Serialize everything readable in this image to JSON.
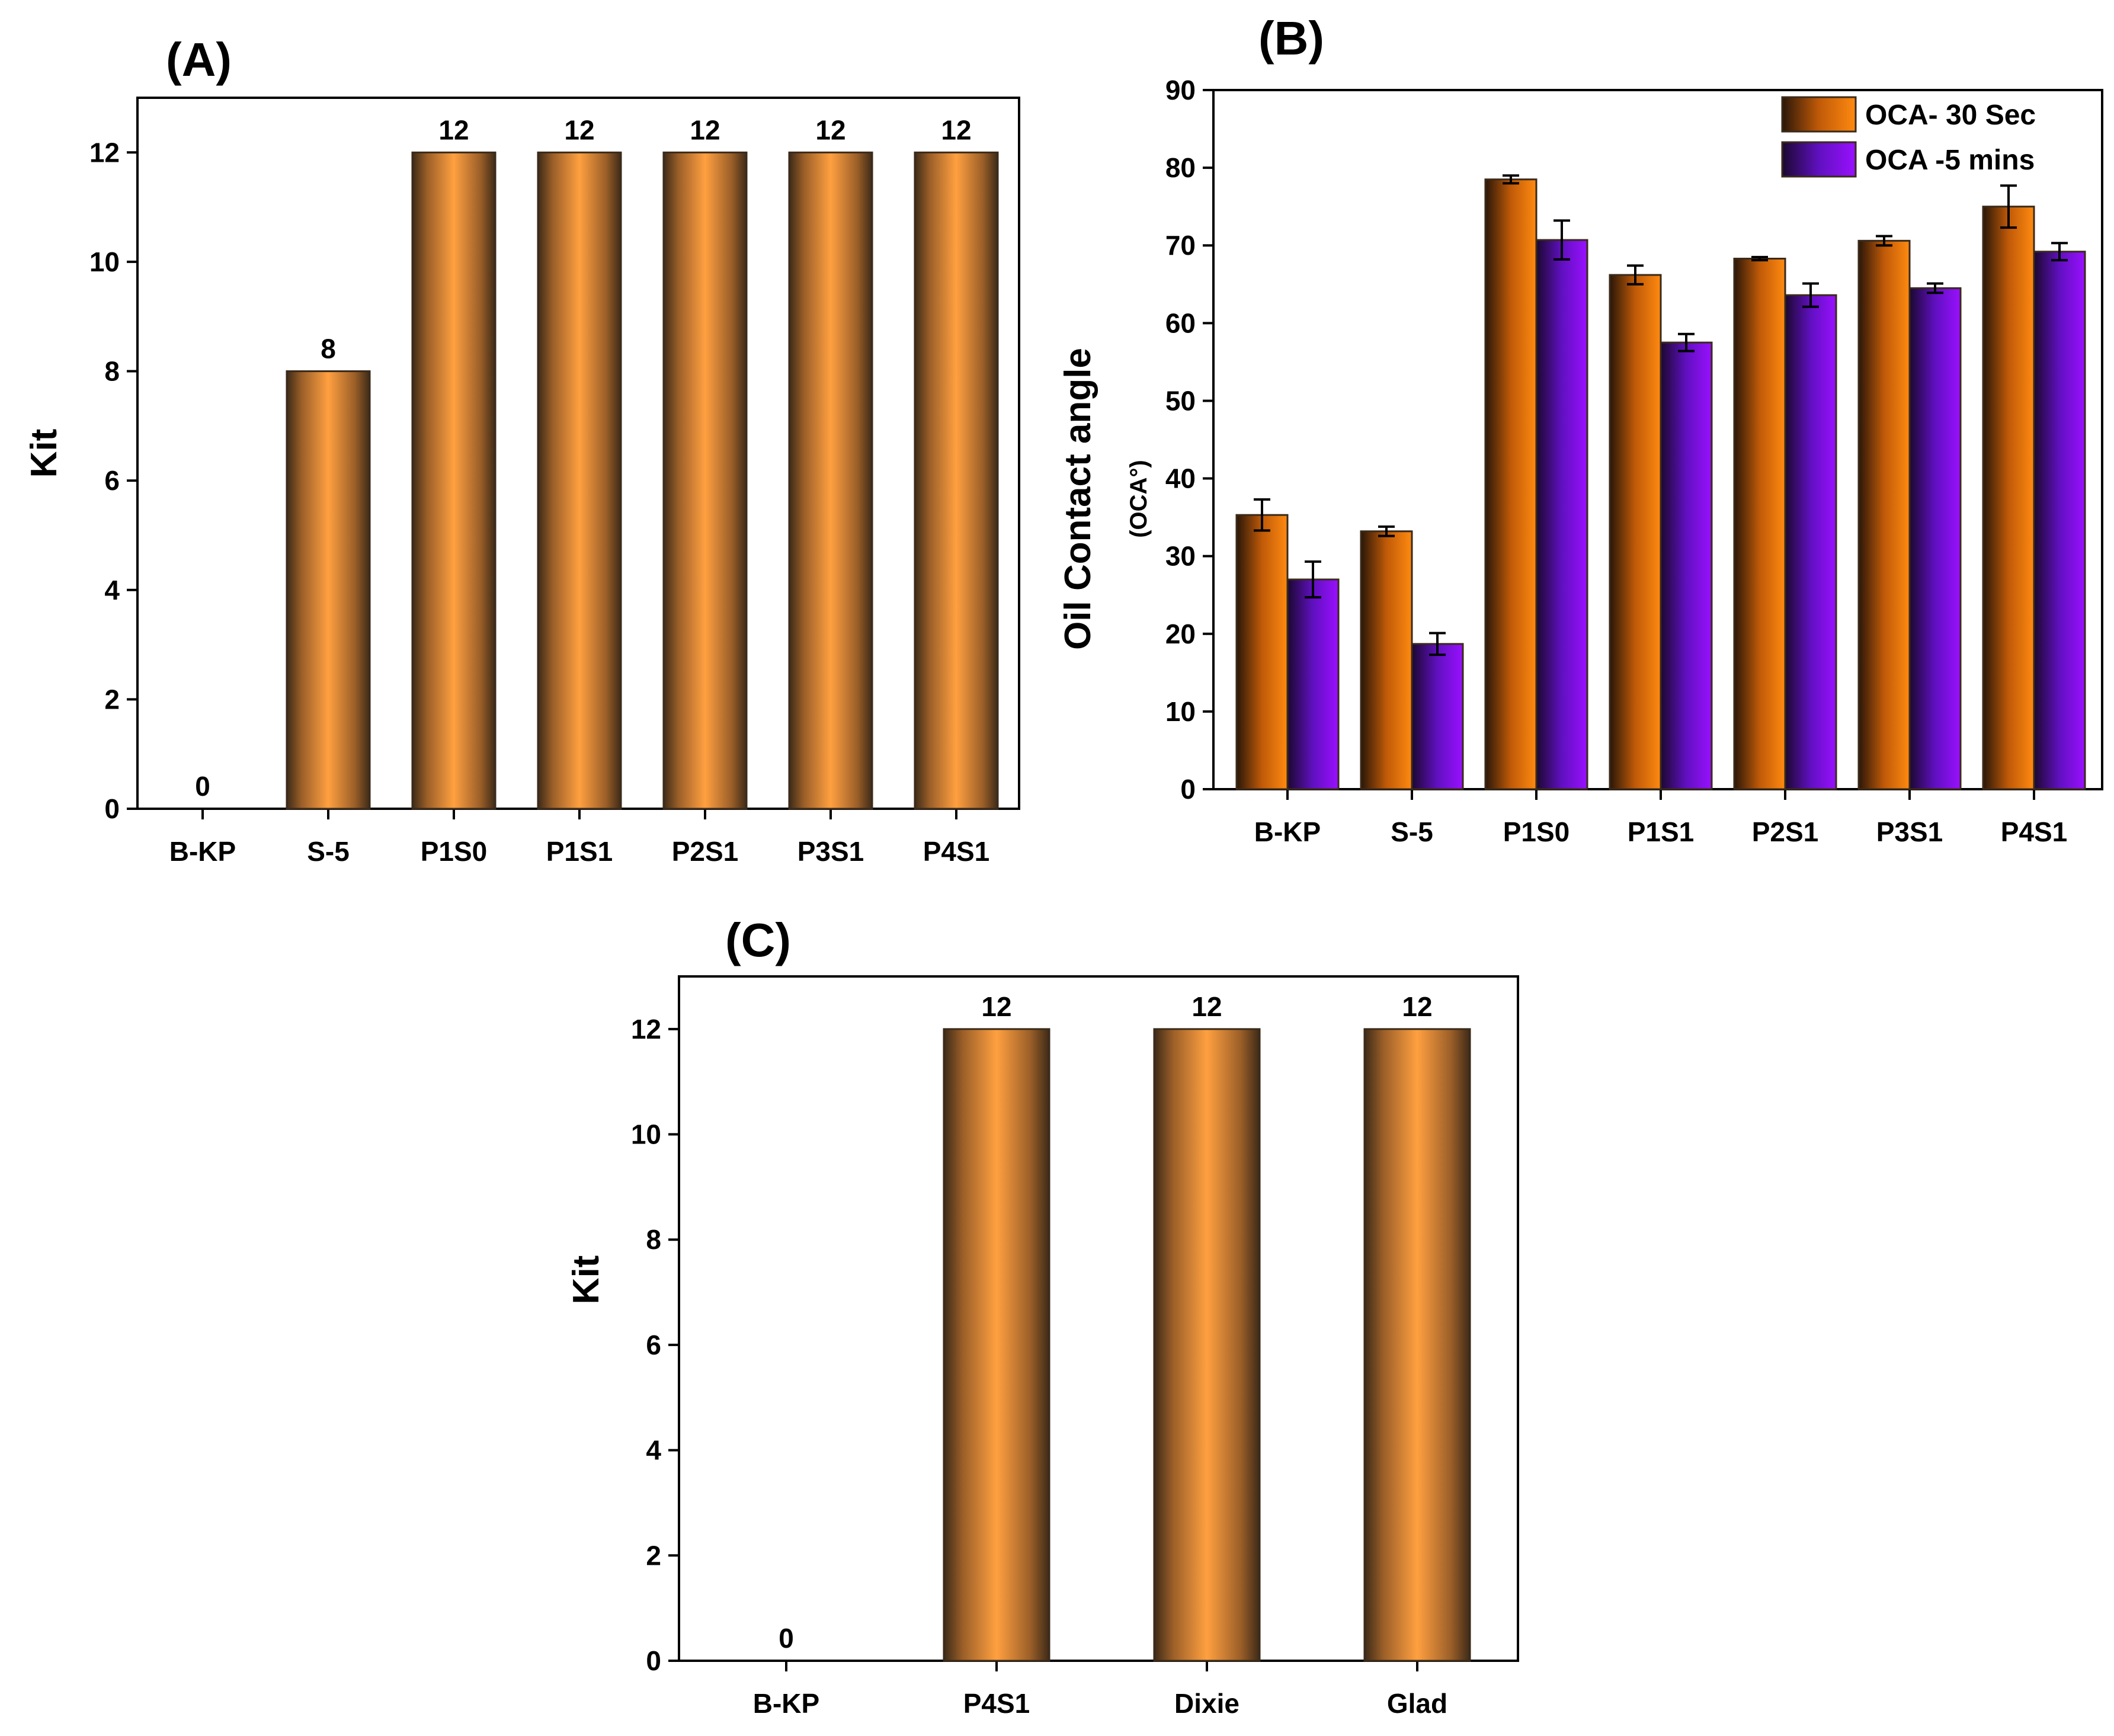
{
  "chart_data": [
    {
      "id": "A",
      "panel_label": "(A)",
      "type": "bar",
      "title": "",
      "xlabel": "",
      "ylabel": "Kit",
      "ylim": [
        0,
        13
      ],
      "yticks": [
        0,
        2,
        4,
        6,
        8,
        10,
        12
      ],
      "categories": [
        "B-KP",
        "S-5",
        "P1S0",
        "P1S1",
        "P2S1",
        "P3S1",
        "P4S1"
      ],
      "series": [
        {
          "name": "Kit",
          "color": "#ffa040",
          "values": [
            0,
            8,
            12,
            12,
            12,
            12,
            12
          ]
        }
      ],
      "data_labels": [
        "0",
        "8",
        "12",
        "12",
        "12",
        "12",
        "12"
      ],
      "grid": false,
      "legend": "none"
    },
    {
      "id": "B",
      "panel_label": "(B)",
      "type": "bar",
      "title": "",
      "xlabel": "",
      "ylabel": "Oil Contact angle",
      "ylabel_sub": "(OCA°)",
      "ylim": [
        0,
        90
      ],
      "yticks": [
        0,
        10,
        20,
        30,
        40,
        50,
        60,
        70,
        80,
        90
      ],
      "categories": [
        "B-KP",
        "S-5",
        "P1S0",
        "P1S1",
        "P2S1",
        "P3S1",
        "P4S1"
      ],
      "series": [
        {
          "name": "OCA- 30 Sec",
          "color": "#ff8a10",
          "values": [
            35.3,
            33.2,
            78.5,
            66.2,
            68.3,
            70.6,
            75.0
          ],
          "errors": [
            2.0,
            0.6,
            0.5,
            1.2,
            0.2,
            0.6,
            2.7
          ]
        },
        {
          "name": "OCA -5 mins",
          "color": "#9a10ff",
          "values": [
            27.0,
            18.7,
            70.7,
            57.5,
            63.6,
            64.5,
            69.2
          ],
          "errors": [
            2.3,
            1.4,
            2.5,
            1.1,
            1.5,
            0.6,
            1.1
          ]
        }
      ],
      "grid": false,
      "legend": "top-right"
    },
    {
      "id": "C",
      "panel_label": "(C)",
      "type": "bar",
      "title": "",
      "xlabel": "",
      "ylabel": "Kit",
      "ylim": [
        0,
        13
      ],
      "yticks": [
        0,
        2,
        4,
        6,
        8,
        10,
        12
      ],
      "categories": [
        "B-KP",
        "P4S1",
        "Dixie",
        "Glad"
      ],
      "series": [
        {
          "name": "Kit",
          "color": "#ffa040",
          "values": [
            0,
            12,
            12,
            12
          ]
        }
      ],
      "data_labels": [
        "0",
        "12",
        "12",
        "12"
      ],
      "grid": false,
      "legend": "none"
    }
  ]
}
